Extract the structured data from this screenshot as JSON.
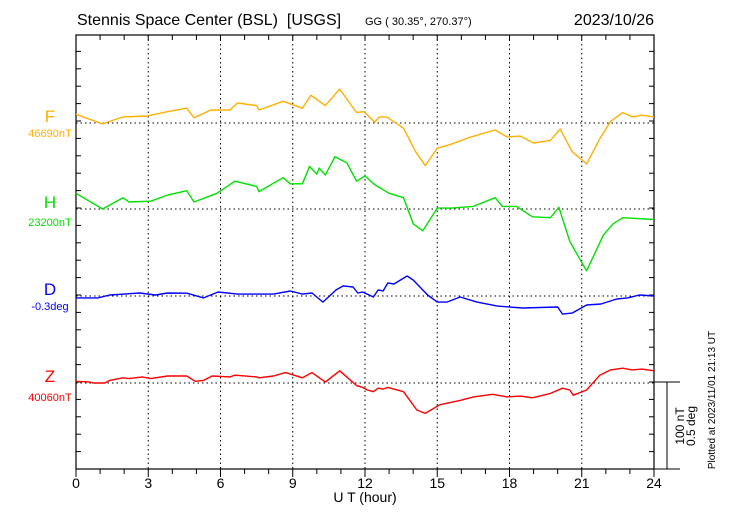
{
  "chart_data": {
    "type": "line",
    "title": "Stennis Space Center (BSL)  [USGS]",
    "coords": "GG ( 30.35°, 270.37°)",
    "date": "2023/10/26",
    "xlabel": "U T (hour)",
    "xlim": [
      0,
      24
    ],
    "xticks": [
      "0",
      "3",
      "6",
      "9",
      "12",
      "15",
      "18",
      "21",
      "24"
    ],
    "scale_bar": {
      "nT_label": "100 nT",
      "deg_label": "0.5 deg",
      "nT": 100,
      "deg": 0.5
    },
    "plotted_note": "Plotted at 2023/11/01 21:13 UT",
    "grid": true,
    "series": [
      {
        "name": "F",
        "baseline_label": "46690nT",
        "unit": "nT",
        "color": "#ffb000",
        "points": [
          [
            0,
            10
          ],
          [
            1.1,
            -1
          ],
          [
            1.95,
            7
          ],
          [
            2.95,
            8
          ],
          [
            3.8,
            13
          ],
          [
            4.6,
            17
          ],
          [
            4.9,
            6
          ],
          [
            5.6,
            15
          ],
          [
            6.4,
            15
          ],
          [
            6.7,
            23
          ],
          [
            7.5,
            20
          ],
          [
            7.6,
            15
          ],
          [
            8.6,
            25
          ],
          [
            9.4,
            17
          ],
          [
            9.75,
            32
          ],
          [
            10.35,
            20
          ],
          [
            10.95,
            39
          ],
          [
            11.65,
            12
          ],
          [
            11.9,
            13
          ],
          [
            12,
            12
          ],
          [
            12.4,
            1
          ],
          [
            12.6,
            7
          ],
          [
            12.9,
            7
          ],
          [
            13.6,
            -6
          ],
          [
            14.1,
            -33
          ],
          [
            14.5,
            -49
          ],
          [
            15,
            -29
          ],
          [
            15.5,
            -25
          ],
          [
            16.4,
            -16
          ],
          [
            17.4,
            -8
          ],
          [
            17.9,
            -16
          ],
          [
            18.45,
            -15
          ],
          [
            19,
            -23
          ],
          [
            19.7,
            -20
          ],
          [
            20.1,
            -7
          ],
          [
            20.6,
            -33
          ],
          [
            21.2,
            -47
          ],
          [
            21.75,
            -18
          ],
          [
            22.2,
            2
          ],
          [
            22.7,
            12
          ],
          [
            23.1,
            7
          ],
          [
            23.5,
            9
          ],
          [
            24,
            7
          ]
        ]
      },
      {
        "name": "H",
        "baseline_label": "23200nT",
        "unit": "nT",
        "color": "#00e000",
        "points": [
          [
            0,
            18
          ],
          [
            1.1,
            0
          ],
          [
            1.95,
            13
          ],
          [
            2.2,
            8
          ],
          [
            3.1,
            9
          ],
          [
            3.8,
            16
          ],
          [
            4.6,
            21
          ],
          [
            4.9,
            8
          ],
          [
            5.85,
            18
          ],
          [
            6.6,
            32
          ],
          [
            7.5,
            26
          ],
          [
            7.6,
            20
          ],
          [
            8.6,
            36
          ],
          [
            8.9,
            29
          ],
          [
            9.4,
            29
          ],
          [
            9.7,
            49
          ],
          [
            10,
            40
          ],
          [
            10.1,
            47
          ],
          [
            10.35,
            39
          ],
          [
            10.75,
            60
          ],
          [
            11.25,
            53
          ],
          [
            11.65,
            32
          ],
          [
            12,
            38
          ],
          [
            12.4,
            28
          ],
          [
            13,
            18
          ],
          [
            13.6,
            13
          ],
          [
            14,
            -17
          ],
          [
            14.4,
            -25
          ],
          [
            15,
            1
          ],
          [
            15.6,
            1
          ],
          [
            16.5,
            3
          ],
          [
            17.4,
            13
          ],
          [
            17.7,
            3
          ],
          [
            18.3,
            3
          ],
          [
            18.95,
            -9
          ],
          [
            19.7,
            -10
          ],
          [
            20.05,
            2
          ],
          [
            20.5,
            -37
          ],
          [
            20.95,
            -59
          ],
          [
            21.2,
            -71
          ],
          [
            21.9,
            -30
          ],
          [
            22.3,
            -17
          ],
          [
            22.7,
            -10
          ],
          [
            24,
            -12
          ]
        ]
      },
      {
        "name": "D",
        "baseline_label": "-0.3deg",
        "unit": "deg",
        "color": "#0000ff",
        "points": [
          [
            0,
            -0.011
          ],
          [
            0.9,
            -0.011
          ],
          [
            1.4,
            0.006
          ],
          [
            2.65,
            0.017
          ],
          [
            3.3,
            0.006
          ],
          [
            3.8,
            0.017
          ],
          [
            4.6,
            0.016
          ],
          [
            5.3,
            -0.011
          ],
          [
            5.9,
            0.023
          ],
          [
            6.7,
            0.011
          ],
          [
            8.2,
            0.011
          ],
          [
            8.9,
            0.029
          ],
          [
            9.4,
            0.011
          ],
          [
            9.8,
            0.017
          ],
          [
            10.25,
            -0.035
          ],
          [
            10.8,
            0.035
          ],
          [
            11.1,
            0.058
          ],
          [
            11.5,
            0.052
          ],
          [
            11.7,
            0.017
          ],
          [
            11.9,
            0.023
          ],
          [
            12.35,
            -0.006
          ],
          [
            12.55,
            0.035
          ],
          [
            12.75,
            0.029
          ],
          [
            12.95,
            0.075
          ],
          [
            13.2,
            0.069
          ],
          [
            13.75,
            0.115
          ],
          [
            14,
            0.092
          ],
          [
            14.6,
            0.006
          ],
          [
            15,
            -0.035
          ],
          [
            15.4,
            -0.035
          ],
          [
            15.95,
            -0.006
          ],
          [
            16.65,
            -0.035
          ],
          [
            17.5,
            -0.058
          ],
          [
            18.55,
            -0.069
          ],
          [
            20,
            -0.063
          ],
          [
            20.2,
            -0.104
          ],
          [
            20.6,
            -0.098
          ],
          [
            21.2,
            -0.052
          ],
          [
            21.8,
            -0.046
          ],
          [
            22.45,
            -0.017
          ],
          [
            22.9,
            -0.011
          ],
          [
            23.4,
            0.006
          ],
          [
            24,
            0
          ]
        ]
      },
      {
        "name": "Z",
        "baseline_label": "40060nT",
        "unit": "nT",
        "color": "#ff0000",
        "points": [
          [
            0,
            2
          ],
          [
            0.6,
            1
          ],
          [
            0.7,
            0
          ],
          [
            1.2,
            0
          ],
          [
            1.4,
            3
          ],
          [
            1.95,
            6
          ],
          [
            2.2,
            5
          ],
          [
            2.75,
            7
          ],
          [
            3.1,
            5
          ],
          [
            3.8,
            8
          ],
          [
            4.6,
            8
          ],
          [
            4.95,
            2
          ],
          [
            5.3,
            3
          ],
          [
            5.65,
            8
          ],
          [
            6.4,
            7
          ],
          [
            6.6,
            9
          ],
          [
            7.5,
            7
          ],
          [
            7.6,
            6
          ],
          [
            8.2,
            8
          ],
          [
            8.7,
            12
          ],
          [
            9.4,
            6
          ],
          [
            9.8,
            12
          ],
          [
            10.35,
            1
          ],
          [
            10.95,
            14
          ],
          [
            11.65,
            -3
          ],
          [
            11.9,
            -5
          ],
          [
            12.1,
            -8
          ],
          [
            12.35,
            -10
          ],
          [
            12.55,
            -6
          ],
          [
            12.75,
            -7
          ],
          [
            12.95,
            -5
          ],
          [
            13.6,
            -10
          ],
          [
            14.15,
            -31
          ],
          [
            14.5,
            -35
          ],
          [
            15.1,
            -25
          ],
          [
            15.95,
            -20
          ],
          [
            16.5,
            -16
          ],
          [
            17.3,
            -13
          ],
          [
            17.9,
            -16
          ],
          [
            18.45,
            -15
          ],
          [
            18.95,
            -17
          ],
          [
            19.7,
            -12
          ],
          [
            20.2,
            -6
          ],
          [
            20.5,
            -8
          ],
          [
            20.65,
            -14
          ],
          [
            21.2,
            -8
          ],
          [
            21.75,
            9
          ],
          [
            22.2,
            15
          ],
          [
            22.7,
            17
          ],
          [
            23.1,
            15
          ],
          [
            23.5,
            16
          ],
          [
            24,
            14
          ]
        ]
      }
    ]
  }
}
